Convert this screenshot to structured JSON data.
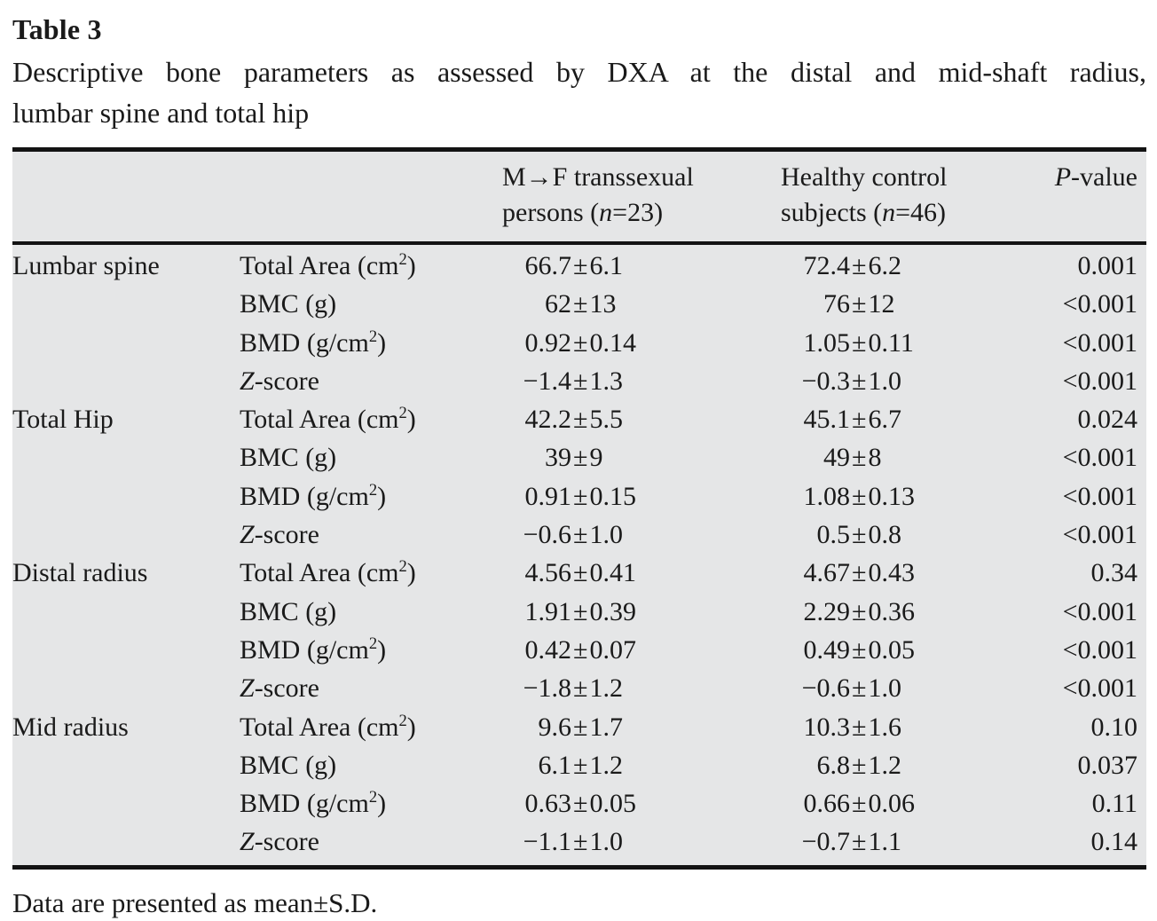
{
  "title": "Table 3",
  "caption_line1": "Descriptive bone parameters as assessed by DXA at the distal and mid-shaft radius,",
  "caption_line2": "lumbar spine and total hip",
  "footnote": "Data are presented as mean±S.D.",
  "colors": {
    "table_background": "#e5e6e7",
    "rule_color": "#131313",
    "text_color": "#1a1a1a"
  },
  "header": {
    "col3": {
      "line1": "M→F transsexual",
      "line2_pre": "persons (",
      "line2_it": "n",
      "line2_post": "=23)"
    },
    "col4": {
      "line1": "Healthy control",
      "line2_pre": "subjects (",
      "line2_it": "n",
      "line2_post": "=46)"
    },
    "col5": {
      "it": "P",
      "post": "-value"
    }
  },
  "rows": [
    {
      "group": "Lumbar spine",
      "label": [
        {
          "t": "Total Area (cm"
        },
        {
          "t": "2",
          "sup": true
        },
        {
          "t": ")"
        }
      ],
      "g1": "66.7±6.1",
      "g2": "72.4±6.2",
      "p": "0.001"
    },
    {
      "group": "",
      "label": [
        {
          "t": "BMC (g)"
        }
      ],
      "g1": "62±13",
      "g2": "76±12",
      "p": "<0.001"
    },
    {
      "group": "",
      "label": [
        {
          "t": "BMD (g/cm"
        },
        {
          "t": "2",
          "sup": true
        },
        {
          "t": ")"
        }
      ],
      "g1": "0.92±0.14",
      "g2": "1.05±0.11",
      "p": "<0.001"
    },
    {
      "group": "",
      "label": [
        {
          "t": "Z",
          "it": true
        },
        {
          "t": "-score"
        }
      ],
      "g1": "−1.4±1.3",
      "g2": "−0.3±1.0",
      "p": "<0.001"
    },
    {
      "group": "Total Hip",
      "label": [
        {
          "t": "Total Area (cm"
        },
        {
          "t": "2",
          "sup": true
        },
        {
          "t": ")"
        }
      ],
      "g1": "42.2±5.5",
      "g2": "45.1±6.7",
      "p": "0.024"
    },
    {
      "group": "",
      "label": [
        {
          "t": "BMC (g)"
        }
      ],
      "g1": "39±9",
      "g2": "49±8",
      "p": "<0.001"
    },
    {
      "group": "",
      "label": [
        {
          "t": "BMD (g/cm"
        },
        {
          "t": "2",
          "sup": true
        },
        {
          "t": ")"
        }
      ],
      "g1": "0.91±0.15",
      "g2": "1.08±0.13",
      "p": "<0.001"
    },
    {
      "group": "",
      "label": [
        {
          "t": "Z",
          "it": true
        },
        {
          "t": "-score"
        }
      ],
      "g1": "−0.6±1.0",
      "g2": "0.5±0.8",
      "p": "<0.001"
    },
    {
      "group": "Distal radius",
      "label": [
        {
          "t": "Total Area (cm"
        },
        {
          "t": "2",
          "sup": true
        },
        {
          "t": ")"
        }
      ],
      "g1": "4.56±0.41",
      "g2": "4.67±0.43",
      "p": "0.34"
    },
    {
      "group": "",
      "label": [
        {
          "t": "BMC (g)"
        }
      ],
      "g1": "1.91±0.39",
      "g2": "2.29±0.36",
      "p": "<0.001"
    },
    {
      "group": "",
      "label": [
        {
          "t": "BMD (g/cm"
        },
        {
          "t": "2",
          "sup": true
        },
        {
          "t": ")"
        }
      ],
      "g1": "0.42±0.07",
      "g2": "0.49±0.05",
      "p": "<0.001"
    },
    {
      "group": "",
      "label": [
        {
          "t": "Z",
          "it": true
        },
        {
          "t": "-score"
        }
      ],
      "g1": "−1.8±1.2",
      "g2": "−0.6±1.0",
      "p": "<0.001"
    },
    {
      "group": "Mid radius",
      "label": [
        {
          "t": "Total Area (cm"
        },
        {
          "t": "2",
          "sup": true
        },
        {
          "t": ")"
        }
      ],
      "g1": "9.6±1.7",
      "g2": "10.3±1.6",
      "p": "0.10"
    },
    {
      "group": "",
      "label": [
        {
          "t": "BMC (g)"
        }
      ],
      "g1": "6.1±1.2",
      "g2": "6.8±1.2",
      "p": "0.037"
    },
    {
      "group": "",
      "label": [
        {
          "t": "BMD (g/cm"
        },
        {
          "t": "2",
          "sup": true
        },
        {
          "t": ")"
        }
      ],
      "g1": "0.63±0.05",
      "g2": "0.66±0.06",
      "p": "0.11"
    },
    {
      "group": "",
      "label": [
        {
          "t": "Z",
          "it": true
        },
        {
          "t": "-score"
        }
      ],
      "g1": "−1.1±1.0",
      "g2": "−0.7±1.1",
      "p": "0.14"
    }
  ]
}
